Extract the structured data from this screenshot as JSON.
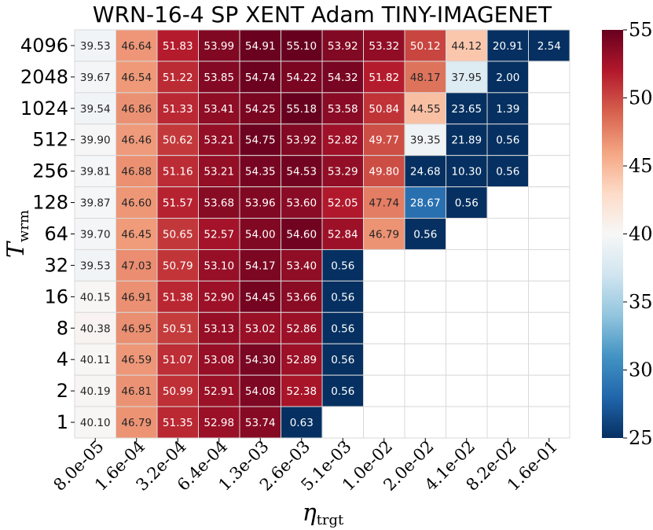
{
  "chart_data": {
    "type": "heatmap",
    "title": "WRN-16-4 SP XENT Adam TINY-IMAGENET",
    "xlabel": {
      "main": "η",
      "sub": "trgt"
    },
    "ylabel": {
      "main": "T",
      "sub": "wrm"
    },
    "x_categories": [
      "8.0e-05",
      "1.6e-04",
      "3.2e-04",
      "6.4e-04",
      "1.3e-03",
      "2.6e-03",
      "5.1e-03",
      "1.0e-02",
      "2.0e-02",
      "4.1e-02",
      "8.2e-02",
      "1.6e-01"
    ],
    "y_categories": [
      "4096",
      "2048",
      "1024",
      "512",
      "256",
      "128",
      "64",
      "32",
      "16",
      "8",
      "4",
      "2",
      "1"
    ],
    "values": [
      [
        39.53,
        46.64,
        51.83,
        53.99,
        54.91,
        55.1,
        53.92,
        53.32,
        50.12,
        44.12,
        20.91,
        2.54
      ],
      [
        39.67,
        46.54,
        51.22,
        53.85,
        54.74,
        54.22,
        54.32,
        51.82,
        48.17,
        37.95,
        2.0,
        null
      ],
      [
        39.54,
        46.86,
        51.33,
        53.41,
        54.25,
        55.18,
        53.58,
        50.84,
        44.55,
        23.65,
        1.39,
        null
      ],
      [
        39.9,
        46.46,
        50.62,
        53.21,
        54.75,
        53.92,
        52.82,
        49.77,
        39.35,
        21.89,
        0.56,
        null
      ],
      [
        39.81,
        46.88,
        51.16,
        53.21,
        54.35,
        54.53,
        53.29,
        49.8,
        24.68,
        10.3,
        0.56,
        null
      ],
      [
        39.87,
        46.6,
        51.57,
        53.68,
        53.96,
        53.6,
        52.05,
        47.74,
        28.67,
        0.56,
        null,
        null
      ],
      [
        39.7,
        46.45,
        50.65,
        52.57,
        54.0,
        54.6,
        52.84,
        46.79,
        0.56,
        null,
        null,
        null
      ],
      [
        39.53,
        47.03,
        50.79,
        53.1,
        54.17,
        53.4,
        0.56,
        null,
        null,
        null,
        null,
        null
      ],
      [
        40.15,
        46.91,
        51.38,
        52.9,
        54.45,
        53.66,
        0.56,
        null,
        null,
        null,
        null,
        null
      ],
      [
        40.38,
        46.95,
        50.51,
        53.13,
        53.02,
        52.86,
        0.56,
        null,
        null,
        null,
        null,
        null
      ],
      [
        40.11,
        46.59,
        51.07,
        53.08,
        54.3,
        52.89,
        0.56,
        null,
        null,
        null,
        null,
        null
      ],
      [
        40.19,
        46.81,
        50.99,
        52.91,
        54.08,
        52.38,
        0.56,
        null,
        null,
        null,
        null,
        null
      ],
      [
        40.1,
        46.79,
        51.35,
        52.98,
        53.74,
        0.63,
        null,
        null,
        null,
        null,
        null,
        null
      ]
    ],
    "value_format": "2 decimals",
    "color_scale": {
      "name": "RdBu_r",
      "vmin": 25,
      "vmax": 55,
      "ticks": [
        "25",
        "30",
        "35",
        "40",
        "45",
        "50",
        "55"
      ],
      "stops": [
        "#053061",
        "#2166ac",
        "#4393c3",
        "#92c5de",
        "#d1e5f0",
        "#f7f7f7",
        "#fddbc7",
        "#f4a582",
        "#d6604d",
        "#b2182b",
        "#67001f"
      ]
    },
    "missing_cell_color": "#ffffff",
    "grid_line_color": "#d9d9d9",
    "colorbar": "right"
  }
}
